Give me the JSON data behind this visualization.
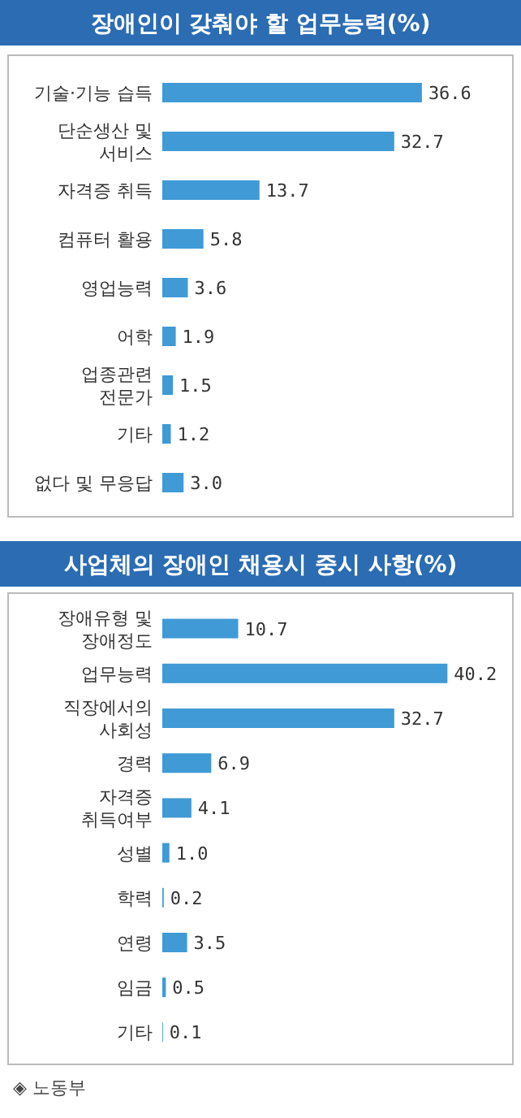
{
  "chart_data": [
    {
      "type": "bar",
      "orientation": "horizontal",
      "title": "장애인이 갖춰야 할 업무능력(%)",
      "categories": [
        "기술·기능 습득",
        "단순생산 및 서비스",
        "자격증 취득",
        "컴퓨터 활용",
        "영업능력",
        "어학",
        "업종관련 전문가",
        "기타",
        "없다 및 무응답"
      ],
      "values": [
        36.6,
        32.7,
        13.7,
        5.8,
        3.6,
        1.9,
        1.5,
        1.2,
        3.0
      ],
      "value_labels": [
        "36.6",
        "32.7",
        "13.7",
        "5.8",
        "3.6",
        "1.9",
        "1.5",
        "1.2",
        "3.0"
      ],
      "color": "#3f9ad6"
    },
    {
      "type": "bar",
      "orientation": "horizontal",
      "title": "사업체의 장애인 채용시 중시 사항(%)",
      "categories": [
        "장애유형 및 장애정도",
        "업무능력",
        "직장에서의 사회성",
        "경력",
        "자격증 취득여부",
        "성별",
        "학력",
        "연령",
        "임금",
        "기타"
      ],
      "values": [
        10.7,
        40.2,
        32.7,
        6.9,
        4.1,
        1.0,
        0.2,
        3.5,
        0.5,
        0.1
      ],
      "value_labels": [
        "10.7",
        "40.2",
        "32.7",
        "6.9",
        "4.1",
        "1.0",
        "0.2",
        "3.5",
        "0.5",
        "0.1"
      ],
      "color": "#3f9ad6",
      "annotations": [
        "◈ 노동부"
      ]
    }
  ]
}
